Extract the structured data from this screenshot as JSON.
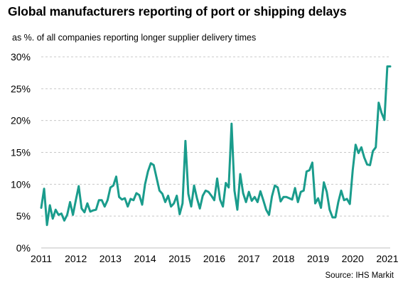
{
  "title": "Global manufacturers reporting of port or shipping delays",
  "subtitle": "as %. of all companies reporting longer supplier delivery times",
  "source": "Source: IHS Markit",
  "chart_data": {
    "type": "line",
    "title": "Global manufacturers reporting of port or shipping delays",
    "subtitle": "as %. of all companies reporting longer supplier delivery times",
    "xlabel": "",
    "ylabel": "",
    "x_ticks": [
      "2011",
      "2012",
      "2013",
      "2014",
      "2015",
      "2016",
      "2017",
      "2018",
      "2019",
      "2020",
      "2021"
    ],
    "y_ticks": [
      "0%",
      "5%",
      "10%",
      "15%",
      "20%",
      "25%",
      "30%"
    ],
    "xlim": [
      "2011-01",
      "2021-02"
    ],
    "ylim": [
      0,
      30
    ],
    "grid": "horizontal-dashed",
    "legend": "none",
    "colors": {
      "line": "#1a9c8c",
      "grid": "#c8c8c8",
      "axis": "#bfbfbf"
    },
    "series": [
      {
        "x": [
          "2011-01",
          "2011-02",
          "2011-03",
          "2011-04",
          "2011-05",
          "2011-06",
          "2011-07",
          "2011-08",
          "2011-09",
          "2011-10",
          "2011-11",
          "2011-12",
          "2012-01",
          "2012-02",
          "2012-03",
          "2012-04",
          "2012-05",
          "2012-06",
          "2012-07",
          "2012-08",
          "2012-09",
          "2012-10",
          "2012-11",
          "2012-12",
          "2013-01",
          "2013-02",
          "2013-03",
          "2013-04",
          "2013-05",
          "2013-06",
          "2013-07",
          "2013-08",
          "2013-09",
          "2013-10",
          "2013-11",
          "2013-12",
          "2014-01",
          "2014-02",
          "2014-03",
          "2014-04",
          "2014-05",
          "2014-06",
          "2014-07",
          "2014-08",
          "2014-09",
          "2014-10",
          "2014-11",
          "2014-12",
          "2015-01",
          "2015-02",
          "2015-03",
          "2015-04",
          "2015-05",
          "2015-06",
          "2015-07",
          "2015-08",
          "2015-09",
          "2015-10",
          "2015-11",
          "2015-12",
          "2016-01",
          "2016-02",
          "2016-03",
          "2016-04",
          "2016-05",
          "2016-06",
          "2016-07",
          "2016-08",
          "2016-09",
          "2016-10",
          "2016-11",
          "2016-12",
          "2017-01",
          "2017-02",
          "2017-03",
          "2017-04",
          "2017-05",
          "2017-06",
          "2017-07",
          "2017-08",
          "2017-09",
          "2017-10",
          "2017-11",
          "2017-12",
          "2018-01",
          "2018-02",
          "2018-03",
          "2018-04",
          "2018-05",
          "2018-06",
          "2018-07",
          "2018-08",
          "2018-09",
          "2018-10",
          "2018-11",
          "2018-12",
          "2019-01",
          "2019-02",
          "2019-03",
          "2019-04",
          "2019-05",
          "2019-06",
          "2019-07",
          "2019-08",
          "2019-09",
          "2019-10",
          "2019-11",
          "2019-12",
          "2020-01",
          "2020-02",
          "2020-03",
          "2020-04",
          "2020-05",
          "2020-06",
          "2020-07",
          "2020-08",
          "2020-09",
          "2020-10",
          "2020-11",
          "2020-12",
          "2021-01",
          "2021-02"
        ],
        "values": [
          6.3,
          9.3,
          3.6,
          6.7,
          4.6,
          6.0,
          5.2,
          5.4,
          4.3,
          5.2,
          7.2,
          5.2,
          7.5,
          9.7,
          6.2,
          5.6,
          7.0,
          5.7,
          5.9,
          6.0,
          7.5,
          7.5,
          6.5,
          7.5,
          9.5,
          9.8,
          11.2,
          8.0,
          7.6,
          7.8,
          6.5,
          7.7,
          7.5,
          8.6,
          8.3,
          6.8,
          10.0,
          12.0,
          13.3,
          13.0,
          11.0,
          9.0,
          8.5,
          7.2,
          8.2,
          6.5,
          7.0,
          8.2,
          5.3,
          7.0,
          16.8,
          8.5,
          6.5,
          9.8,
          7.8,
          6.2,
          8.2,
          9.0,
          8.8,
          8.2,
          7.5,
          10.9,
          7.6,
          6.5,
          10.2,
          9.5,
          19.5,
          9.0,
          6.0,
          11.6,
          8.6,
          7.2,
          8.8,
          7.4,
          8.0,
          7.2,
          8.9,
          7.5,
          6.0,
          5.2,
          8.1,
          9.8,
          9.5,
          7.3,
          8.0,
          8.0,
          7.8,
          7.6,
          9.4,
          7.2,
          8.8,
          9.0,
          12.0,
          12.2,
          13.4,
          7.0,
          7.8,
          6.3,
          10.3,
          8.8,
          6.0,
          4.8,
          4.8,
          7.2,
          9.0,
          7.5,
          7.7,
          6.9,
          12.2,
          16.2,
          14.9,
          15.8,
          14.2,
          13.1,
          13.0,
          15.2,
          15.8,
          22.8,
          21.2,
          20.1,
          28.5,
          28.5
        ]
      }
    ]
  }
}
